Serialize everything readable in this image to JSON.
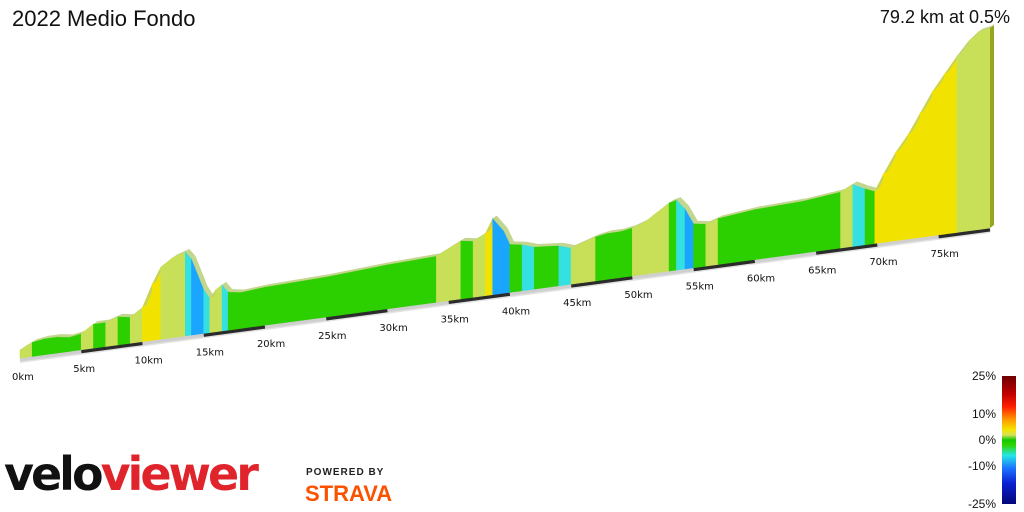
{
  "header": {
    "title": "2022 Medio Fondo",
    "summary": "79.2 km at 0.5%"
  },
  "chart_data": {
    "type": "area",
    "title": "2022 Medio Fondo",
    "subtitle": "79.2 km at 0.5%",
    "x_unit": "km",
    "tick_labels": [
      "0km",
      "5km",
      "10km",
      "15km",
      "20km",
      "25km",
      "30km",
      "35km",
      "40km",
      "45km",
      "50km",
      "55km",
      "60km",
      "65km",
      "70km",
      "75km"
    ],
    "tick_values": [
      0,
      5,
      10,
      15,
      20,
      25,
      30,
      35,
      40,
      45,
      50,
      55,
      60,
      65,
      70,
      75
    ],
    "xlim": [
      0,
      79.2
    ],
    "profile_points": [
      {
        "km": 0,
        "rel": 4,
        "grade": 1
      },
      {
        "km": 1,
        "rel": 7,
        "grade": 3
      },
      {
        "km": 2,
        "rel": 8,
        "grade": 1
      },
      {
        "km": 3,
        "rel": 8,
        "grade": 0
      },
      {
        "km": 4,
        "rel": 7,
        "grade": -1
      },
      {
        "km": 5,
        "rel": 8,
        "grade": 1
      },
      {
        "km": 6,
        "rel": 12,
        "grade": 4
      },
      {
        "km": 7,
        "rel": 12,
        "grade": 0
      },
      {
        "km": 8,
        "rel": 14,
        "grade": 2
      },
      {
        "km": 9,
        "rel": 13,
        "grade": -1
      },
      {
        "km": 10,
        "rel": 17,
        "grade": 4
      },
      {
        "km": 10.8,
        "rel": 28,
        "grade": 8
      },
      {
        "km": 11.5,
        "rel": 36,
        "grade": 7
      },
      {
        "km": 12.5,
        "rel": 40,
        "grade": 4
      },
      {
        "km": 13.5,
        "rel": 42,
        "grade": 2
      },
      {
        "km": 14,
        "rel": 38,
        "grade": -4
      },
      {
        "km": 14.5,
        "rel": 30,
        "grade": -8
      },
      {
        "km": 15,
        "rel": 22,
        "grade": -9
      },
      {
        "km": 15.5,
        "rel": 17,
        "grade": -5
      },
      {
        "km": 16,
        "rel": 21,
        "grade": 4
      },
      {
        "km": 16.5,
        "rel": 23,
        "grade": 2
      },
      {
        "km": 17,
        "rel": 19,
        "grade": -4
      },
      {
        "km": 18,
        "rel": 18,
        "grade": 0
      },
      {
        "km": 20,
        "rel": 19,
        "grade": 1
      },
      {
        "km": 25,
        "rel": 20,
        "grade": 0
      },
      {
        "km": 30,
        "rel": 22,
        "grade": 1
      },
      {
        "km": 34,
        "rel": 23,
        "grade": 0
      },
      {
        "km": 35,
        "rel": 26,
        "grade": 3
      },
      {
        "km": 36,
        "rel": 29,
        "grade": 3
      },
      {
        "km": 37,
        "rel": 28,
        "grade": -1
      },
      {
        "km": 38,
        "rel": 31,
        "grade": 3
      },
      {
        "km": 38.6,
        "rel": 38,
        "grade": 9
      },
      {
        "km": 39.5,
        "rel": 31,
        "grade": -8
      },
      {
        "km": 40,
        "rel": 24,
        "grade": -7
      },
      {
        "km": 41,
        "rel": 23,
        "grade": -1
      },
      {
        "km": 42,
        "rel": 21,
        "grade": -2
      },
      {
        "km": 44,
        "rel": 20,
        "grade": -1
      },
      {
        "km": 45,
        "rel": 18,
        "grade": -2
      },
      {
        "km": 46,
        "rel": 20,
        "grade": 2
      },
      {
        "km": 47,
        "rel": 22,
        "grade": 2
      },
      {
        "km": 48,
        "rel": 23,
        "grade": 1
      },
      {
        "km": 49,
        "rel": 23,
        "grade": 0
      },
      {
        "km": 50,
        "rel": 24,
        "grade": 1
      },
      {
        "km": 51,
        "rel": 26,
        "grade": 2
      },
      {
        "km": 52,
        "rel": 30,
        "grade": 4
      },
      {
        "km": 53,
        "rel": 34,
        "grade": 4
      },
      {
        "km": 53.6,
        "rel": 35,
        "grade": 1
      },
      {
        "km": 54.3,
        "rel": 30,
        "grade": -5
      },
      {
        "km": 55,
        "rel": 22,
        "grade": -7
      },
      {
        "km": 56,
        "rel": 21,
        "grade": -1
      },
      {
        "km": 57,
        "rel": 23,
        "grade": 2
      },
      {
        "km": 60,
        "rel": 25,
        "grade": 1
      },
      {
        "km": 64,
        "rel": 26,
        "grade": 0
      },
      {
        "km": 67,
        "rel": 28,
        "grade": 1
      },
      {
        "km": 68,
        "rel": 31,
        "grade": 3
      },
      {
        "km": 69,
        "rel": 28,
        "grade": -3
      },
      {
        "km": 69.8,
        "rel": 26,
        "grade": -1
      },
      {
        "km": 70.5,
        "rel": 34,
        "grade": 8
      },
      {
        "km": 71.5,
        "rel": 44,
        "grade": 7
      },
      {
        "km": 72.5,
        "rel": 52,
        "grade": 6
      },
      {
        "km": 73.5,
        "rel": 62,
        "grade": 7
      },
      {
        "km": 74.5,
        "rel": 72,
        "grade": 7
      },
      {
        "km": 75.5,
        "rel": 80,
        "grade": 6
      },
      {
        "km": 76.5,
        "rel": 88,
        "grade": 6
      },
      {
        "km": 77.5,
        "rel": 95,
        "grade": 5
      },
      {
        "km": 78.3,
        "rel": 99,
        "grade": 4
      },
      {
        "km": 79.2,
        "rel": 100,
        "grade": 2
      }
    ],
    "color_scale": {
      "ticks": [
        "25%",
        "10%",
        "0%",
        "-10%",
        "-25%"
      ],
      "tick_values": [
        25,
        10,
        0,
        -10,
        -25
      ]
    },
    "colors": {
      "flat": "#2ccf00",
      "mild_up": "#c8df58",
      "steep_up": "#f2e200",
      "mild_down": "#35e0e0",
      "steep_down": "#1aa6ff"
    }
  },
  "branding": {
    "logo_part1": "velo",
    "logo_part2": "viewer",
    "powered_by": "POWERED BY",
    "strava": "STRAVA"
  }
}
